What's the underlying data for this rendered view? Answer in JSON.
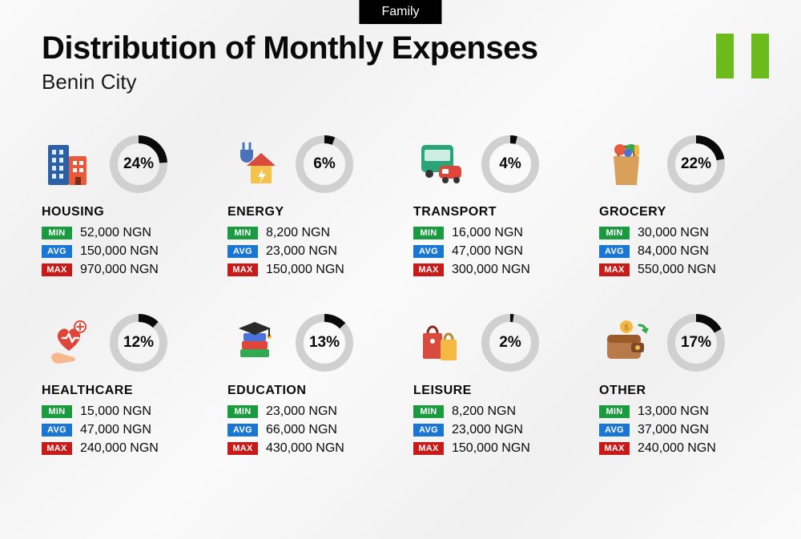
{
  "tag": "Family",
  "title": "Distribution of Monthly Expenses",
  "subtitle": "Benin City",
  "flag_color": "#6cbb1c",
  "currency": "NGN",
  "labels": {
    "min": "MIN",
    "avg": "AVG",
    "max": "MAX"
  },
  "badge_colors": {
    "min": "#1b9b3f",
    "avg": "#1976d2",
    "max": "#c91a1a"
  },
  "donut": {
    "track_color": "#d0d0d0",
    "fill_color": "#0a0a0a",
    "stroke_width": 10,
    "radius": 31
  },
  "categories": [
    {
      "key": "housing",
      "name": "HOUSING",
      "pct": 24,
      "min": "52,000",
      "avg": "150,000",
      "max": "970,000",
      "icon": "buildings"
    },
    {
      "key": "energy",
      "name": "ENERGY",
      "pct": 6,
      "min": "8,200",
      "avg": "23,000",
      "max": "150,000",
      "icon": "plug-house"
    },
    {
      "key": "transport",
      "name": "TRANSPORT",
      "pct": 4,
      "min": "16,000",
      "avg": "47,000",
      "max": "300,000",
      "icon": "bus-car"
    },
    {
      "key": "grocery",
      "name": "GROCERY",
      "pct": 22,
      "min": "30,000",
      "avg": "84,000",
      "max": "550,000",
      "icon": "grocery-bag"
    },
    {
      "key": "healthcare",
      "name": "HEALTHCARE",
      "pct": 12,
      "min": "15,000",
      "avg": "47,000",
      "max": "240,000",
      "icon": "heart-hand"
    },
    {
      "key": "education",
      "name": "EDUCATION",
      "pct": 13,
      "min": "23,000",
      "avg": "66,000",
      "max": "430,000",
      "icon": "grad-books"
    },
    {
      "key": "leisure",
      "name": "LEISURE",
      "pct": 2,
      "min": "8,200",
      "avg": "23,000",
      "max": "150,000",
      "icon": "shopping-bags"
    },
    {
      "key": "other",
      "name": "OTHER",
      "pct": 17,
      "min": "13,000",
      "avg": "37,000",
      "max": "240,000",
      "icon": "wallet"
    }
  ]
}
